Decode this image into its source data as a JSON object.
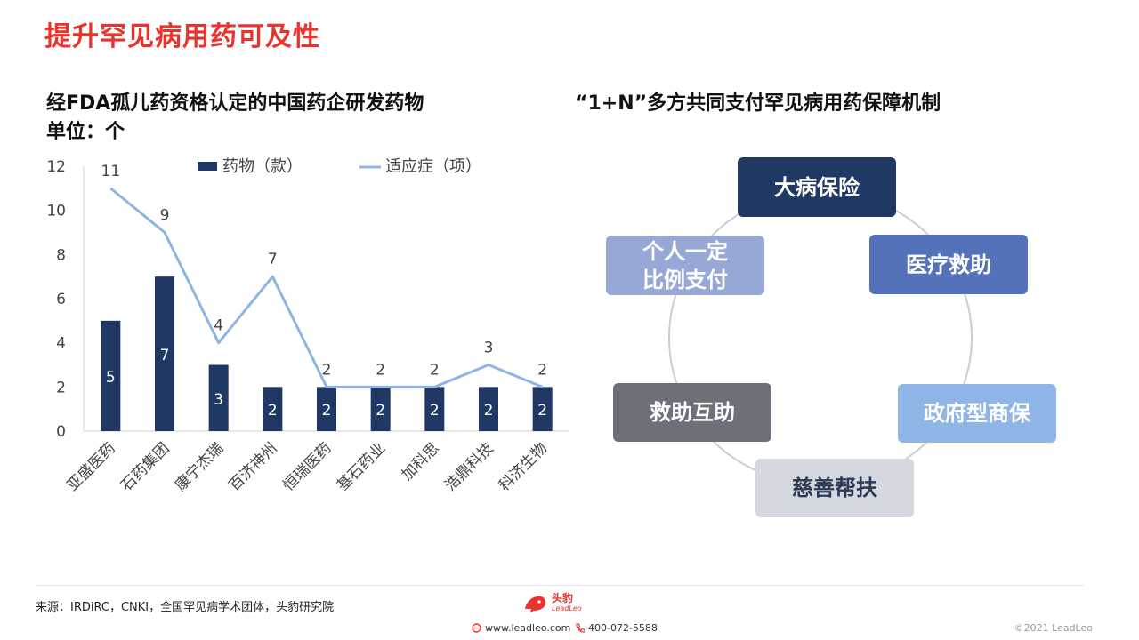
{
  "page": {
    "title": "提升罕见病用药可及性",
    "left_title_line1": "经FDA孤儿药资格认定的中国药企研发药物",
    "left_title_line2": "单位：个",
    "right_title": "“1+N”多方共同支付罕见病用药保障机制"
  },
  "chart_data": {
    "type": "bar",
    "categories": [
      "亚盛医药",
      "石药集团",
      "康宁杰瑞",
      "百济神州",
      "恒瑞医药",
      "基石药业",
      "加科思",
      "浩鼎科技",
      "科济生物"
    ],
    "series": [
      {
        "name": "药物（款）",
        "type": "bar",
        "values": [
          5,
          7,
          3,
          2,
          2,
          2,
          2,
          2,
          2
        ]
      },
      {
        "name": "适应症（项）",
        "type": "line",
        "values": [
          11,
          9,
          4,
          7,
          2,
          2,
          2,
          3,
          2
        ]
      }
    ],
    "ylim": [
      0,
      12
    ],
    "yticks": [
      0,
      2,
      4,
      6,
      8,
      10,
      12
    ],
    "legend": "top",
    "grid": false
  },
  "diagram": {
    "nodes": [
      {
        "id": "major-illness-insurance",
        "label": "大病保险",
        "color": "#203864",
        "text_color": "#ffffff"
      },
      {
        "id": "medical-assistance",
        "label": "医疗救助",
        "color": "#5472ba",
        "text_color": "#ffffff"
      },
      {
        "id": "government-insurance",
        "label": "政府型商保",
        "color": "#8fb4e6",
        "text_color": "#ffffff"
      },
      {
        "id": "charity-aid",
        "label": "慈善帮扶",
        "color": "#d5d9df",
        "text_color": "#2b3a55"
      },
      {
        "id": "mutual-aid",
        "label": "救助互助",
        "color": "#6d7079",
        "text_color": "#ffffff"
      },
      {
        "id": "personal-payment",
        "label": "个人一定\n比例支付",
        "color": "#98a8d6",
        "text_color": "#ffffff"
      }
    ],
    "ring_color": "#c9ced6"
  },
  "footer": {
    "source": "来源：IRDiRC，CNKI，全国罕见病学术团体，头豹研究院",
    "logo_text": "头豹",
    "logo_subtext": "LeadLeo",
    "website": "www.leadleo.com",
    "phone": "400-072-5588",
    "copyright": "©2021 LeadLeo"
  },
  "colors": {
    "accent": "#e8342c",
    "bar": "#203864",
    "line": "#8fb4e6"
  },
  "icons": [
    "browser-icon",
    "phone-icon",
    "leopard-logo-icon"
  ]
}
